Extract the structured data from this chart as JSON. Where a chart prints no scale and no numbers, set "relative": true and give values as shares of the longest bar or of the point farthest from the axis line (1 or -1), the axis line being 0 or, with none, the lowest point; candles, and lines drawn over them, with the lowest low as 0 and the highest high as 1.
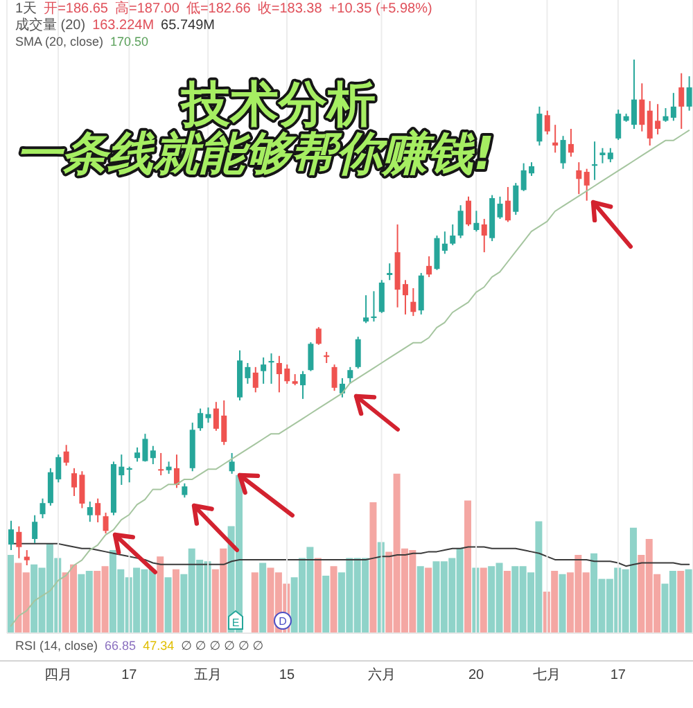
{
  "chart_data": [
    {
      "type": "candlestick",
      "title": "技术分析",
      "subtitle": "一条线就能够帮你赚钱!",
      "annotations": [
        "1天",
        "开=186.65",
        "高=187.00",
        "低=182.66",
        "收=183.38",
        "+10.35 (+5.98%)",
        "成交量 (20)",
        "163.224M",
        "65.749M",
        "SMA (20, close)",
        "170.50",
        "RSI (14, close)",
        "66.85",
        "47.34",
        "∅ ∅ ∅ ∅ ∅ ∅",
        "E",
        "D"
      ],
      "categories": [
        null,
        null,
        null,
        null,
        null,
        null,
        "四月",
        null,
        null,
        null,
        null,
        null,
        null,
        null,
        null,
        "17",
        null,
        null,
        null,
        null,
        null,
        null,
        null,
        null,
        null,
        "五月",
        null,
        null,
        null,
        null,
        null,
        null,
        null,
        null,
        null,
        "15",
        null,
        null,
        null,
        null,
        null,
        null,
        null,
        null,
        null,
        null,
        null,
        "六月",
        null,
        null,
        null,
        null,
        null,
        null,
        null,
        null,
        null,
        null,
        null,
        "20",
        null,
        null,
        null,
        null,
        null,
        null,
        null,
        null,
        "七月",
        null,
        null,
        null,
        null,
        null,
        null,
        null,
        null,
        "17",
        null,
        null,
        null,
        null,
        null,
        null,
        null,
        null,
        null
      ],
      "ohlc": [
        [
          0.041,
          0.088,
          0.03,
          0.071
        ],
        [
          0.066,
          0.077,
          0.014,
          0.036
        ],
        [
          0.017,
          0.03,
          0,
          0.01
        ],
        [
          0.052,
          0.099,
          0.044,
          0.086
        ],
        [
          0.101,
          0.132,
          0.093,
          0.123
        ],
        [
          0.123,
          0.192,
          0.118,
          0.184
        ],
        [
          0.17,
          0.219,
          0.164,
          0.214
        ],
        [
          0.225,
          0.238,
          0.197,
          0.203
        ],
        [
          0.182,
          0.192,
          0.137,
          0.154
        ],
        [
          0.179,
          0.186,
          0.113,
          0.122
        ],
        [
          0.099,
          0.126,
          0.086,
          0.115
        ],
        [
          0.123,
          0.132,
          0.085,
          0.099
        ],
        [
          0.097,
          0.104,
          0.063,
          0.068
        ],
        [
          0.104,
          0.205,
          0.099,
          0.2
        ],
        [
          0.178,
          0.219,
          0.159,
          0.195
        ],
        [
          0.189,
          0.195,
          0.164,
          0.192
        ],
        [
          0.212,
          0.233,
          0.205,
          0.223
        ],
        [
          0.206,
          0.26,
          0.205,
          0.25
        ],
        [
          0.212,
          0.236,
          0.2,
          0.227
        ],
        [
          0.19,
          0.222,
          0.178,
          0.188
        ],
        [
          0.188,
          0.205,
          0.181,
          0.195
        ],
        [
          0.192,
          0.219,
          0.153,
          0.159
        ],
        [
          0.139,
          0.162,
          0.134,
          0.156
        ],
        [
          0.192,
          0.282,
          0.186,
          0.268
        ],
        [
          0.271,
          0.31,
          0.266,
          0.301
        ],
        [
          0.291,
          0.312,
          0.282,
          0.299
        ],
        [
          0.31,
          0.323,
          0.266,
          0.27
        ],
        [
          0.296,
          0.326,
          0.238,
          0.244
        ],
        [
          0.186,
          0.222,
          0.181,
          0.205
        ],
        [
          0.332,
          0.425,
          0.326,
          0.405
        ],
        [
          0.37,
          0.4,
          0.359,
          0.392
        ],
        [
          0.381,
          0.392,
          0.342,
          0.351
        ],
        [
          0.384,
          0.411,
          0.359,
          0.397
        ],
        [
          0.401,
          0.419,
          0.359,
          0.404
        ],
        [
          0.4,
          0.414,
          0.342,
          0.378
        ],
        [
          0.389,
          0.397,
          0.359,
          0.364
        ],
        [
          0.364,
          0.378,
          0.356,
          0.359
        ],
        [
          0.356,
          0.384,
          0.329,
          0.378
        ],
        [
          0.386,
          0.441,
          0.384,
          0.438
        ],
        [
          0.468,
          0.471,
          0.436,
          0.438
        ],
        [
          0.415,
          0.422,
          0.4,
          0.412
        ],
        [
          0.392,
          0.397,
          0.345,
          0.351
        ],
        [
          0.34,
          0.37,
          0.332,
          0.359
        ],
        [
          0.37,
          0.392,
          0.359,
          0.386
        ],
        [
          0.392,
          0.452,
          0.389,
          0.447
        ],
        [
          0.482,
          0.534,
          0.479,
          0.49
        ],
        [
          0.489,
          0.542,
          0.482,
          0.492
        ],
        [
          0.501,
          0.564,
          0.499,
          0.559
        ],
        [
          0.574,
          0.597,
          0.564,
          0.578
        ],
        [
          0.619,
          0.674,
          0.51,
          0.545
        ],
        [
          0.556,
          0.564,
          0.496,
          0.534
        ],
        [
          0.521,
          0.548,
          0.493,
          0.501
        ],
        [
          0.504,
          0.578,
          0.496,
          0.573
        ],
        [
          0.592,
          0.611,
          0.57,
          0.575
        ],
        [
          0.586,
          0.652,
          0.584,
          0.647
        ],
        [
          0.622,
          0.66,
          0.616,
          0.636
        ],
        [
          0.636,
          0.674,
          0.633,
          0.652
        ],
        [
          0.652,
          0.712,
          0.647,
          0.701
        ],
        [
          0.721,
          0.729,
          0.671,
          0.674
        ],
        [
          0.663,
          0.701,
          0.66,
          0.677
        ],
        [
          0.674,
          0.685,
          0.619,
          0.652
        ],
        [
          0.647,
          0.732,
          0.641,
          0.726
        ],
        [
          0.688,
          0.729,
          0.685,
          0.715
        ],
        [
          0.721,
          0.748,
          0.679,
          0.682
        ],
        [
          0.699,
          0.756,
          0.693,
          0.751
        ],
        [
          0.742,
          0.795,
          0.74,
          0.781
        ],
        [
          0.775,
          0.797,
          0.77,
          0.789
        ],
        [
          0.838,
          0.907,
          0.83,
          0.893
        ],
        [
          0.89,
          0.899,
          0.852,
          0.858
        ],
        [
          0.836,
          0.871,
          0.816,
          0.83
        ],
        [
          0.795,
          0.849,
          0.784,
          0.841
        ],
        [
          0.833,
          0.863,
          0.808,
          0.816
        ],
        [
          0.781,
          0.797,
          0.734,
          0.764
        ],
        [
          0.778,
          0.784,
          0.721,
          0.751
        ],
        [
          0.79,
          0.838,
          0.762,
          0.793
        ],
        [
          0.811,
          0.825,
          0.795,
          0.816
        ],
        [
          0.803,
          0.825,
          0.797,
          0.816
        ],
        [
          0.844,
          0.901,
          0.841,
          0.893
        ],
        [
          0.879,
          0.893,
          0.877,
          0.888
        ],
        [
          0.871,
          1,
          0.863,
          0.921
        ],
        [
          0.921,
          0.953,
          0.858,
          0.871
        ],
        [
          0.899,
          0.918,
          0.83,
          0.844
        ],
        [
          0.879,
          0.912,
          0.852,
          0.863
        ],
        [
          0.879,
          0.904,
          0.877,
          0.888
        ],
        [
          0.885,
          0.934,
          0.879,
          0.907
        ],
        [
          0.945,
          0.973,
          0.863,
          0.907
        ],
        [
          0.907,
          0.967,
          0.899,
          0.945
        ]
      ],
      "colors": [
        "#26a69a",
        "#ef5350",
        "#ef5350",
        "#26a69a",
        "#26a69a",
        "#26a69a",
        "#26a69a",
        "#ef5350",
        "#ef5350",
        "#ef5350",
        "#26a69a",
        "#ef5350",
        "#ef5350",
        "#26a69a",
        "#26a69a",
        "#26a69a",
        "#26a69a",
        "#26a69a",
        "#26a69a",
        "#ef5350",
        "#26a69a",
        "#ef5350",
        "#26a69a",
        "#26a69a",
        "#26a69a",
        "#26a69a",
        "#ef5350",
        "#ef5350",
        "#26a69a",
        "#26a69a",
        "#26a69a",
        "#ef5350",
        "#26a69a",
        "#26a69a",
        "#ef5350",
        "#ef5350",
        "#ef5350",
        "#26a69a",
        "#26a69a",
        "#ef5350",
        "#ef5350",
        "#ef5350",
        "#26a69a",
        "#26a69a",
        "#26a69a",
        "#26a69a",
        "#26a69a",
        "#26a69a",
        "#26a69a",
        "#ef5350",
        "#ef5350",
        "#ef5350",
        "#26a69a",
        "#ef5350",
        "#26a69a",
        "#26a69a",
        "#26a69a",
        "#26a69a",
        "#ef5350",
        "#26a69a",
        "#ef5350",
        "#26a69a",
        "#26a69a",
        "#ef5350",
        "#26a69a",
        "#26a69a",
        "#26a69a",
        "#26a69a",
        "#ef5350",
        "#ef5350",
        "#26a69a",
        "#ef5350",
        "#ef5350",
        "#ef5350",
        "#26a69a",
        "#26a69a",
        "#26a69a",
        "#26a69a",
        "#26a69a",
        "#26a69a",
        "#ef5350",
        "#ef5350",
        "#ef5350",
        "#26a69a",
        "#26a69a",
        "#ef5350",
        "#26a69a"
      ],
      "series": [
        {
          "type": "line",
          "color": "#a5c59f",
          "values": [
            -0.12,
            -0.1,
            -0.09,
            -0.07,
            -0.06,
            -0.05,
            -0.03,
            -0.02,
            0,
            0.01,
            0.03,
            0.04,
            0.06,
            0.07,
            0.09,
            0.1,
            0.12,
            0.13,
            0.15,
            0.15,
            0.16,
            0.16,
            0.17,
            0.17,
            0.18,
            0.19,
            0.19,
            0.2,
            0.21,
            0.22,
            0.23,
            0.24,
            0.25,
            0.26,
            0.26,
            0.27,
            0.28,
            0.29,
            0.3,
            0.31,
            0.32,
            0.33,
            0.34,
            0.36,
            0.37,
            0.38,
            0.39,
            0.4,
            0.41,
            0.42,
            0.43,
            0.44,
            0.44,
            0.45,
            0.47,
            0.48,
            0.5,
            0.51,
            0.52,
            0.54,
            0.55,
            0.57,
            0.58,
            0.6,
            0.62,
            0.64,
            0.66,
            0.67,
            0.68,
            0.7,
            0.71,
            0.72,
            0.73,
            0.74,
            0.75,
            0.76,
            0.77,
            0.78,
            0.79,
            0.8,
            0.81,
            0.82,
            0.83,
            0.84,
            0.84,
            0.85,
            0.86
          ]
        }
      ],
      "relative": true,
      "grid": "x"
    },
    {
      "type": "bar",
      "categories": [
        null,
        null,
        null,
        null,
        null,
        null,
        null,
        null,
        null,
        null,
        null,
        null,
        null,
        null,
        null,
        null,
        null,
        null,
        null,
        null,
        null,
        null,
        null,
        null,
        null,
        null,
        null,
        null,
        null,
        null,
        null,
        null,
        null,
        null,
        null,
        null,
        null,
        null,
        null,
        null,
        null,
        null,
        null,
        null,
        null,
        null,
        null,
        null,
        null,
        null,
        null,
        null,
        null,
        null,
        null,
        null,
        null,
        null,
        null,
        null,
        null,
        null,
        null,
        null,
        null,
        null,
        null,
        null,
        null,
        null,
        null,
        null,
        null,
        null,
        null,
        null,
        null,
        null,
        null,
        null,
        null,
        null,
        null,
        null,
        null,
        null,
        null
      ],
      "series": [
        {
          "type": "bar",
          "colors": [
            "#8fd3c9",
            "#f4a7a3",
            "#f4a7a3",
            "#8fd3c9",
            "#8fd3c9",
            "#8fd3c9",
            "#8fd3c9",
            "#f4a7a3",
            "#f4a7a3",
            "#8fd3c9",
            "#8fd3c9",
            "#f4a7a3",
            "#f4a7a3",
            "#8fd3c9",
            "#8fd3c9",
            "#8fd3c9",
            "#8fd3c9",
            "#8fd3c9",
            "#8fd3c9",
            "#f4a7a3",
            "#8fd3c9",
            "#f4a7a3",
            "#8fd3c9",
            "#8fd3c9",
            "#8fd3c9",
            "#8fd3c9",
            "#f4a7a3",
            "#f4a7a3",
            "#8fd3c9",
            "#8fd3c9",
            "#8fd3c9",
            "#f4a7a3",
            "#8fd3c9",
            "#f4a7a3",
            "#f4a7a3",
            "#f4a7a3",
            "#8fd3c9",
            "#8fd3c9",
            "#8fd3c9",
            "#f4a7a3",
            "#8fd3c9",
            "#f4a7a3",
            "#8fd3c9",
            "#8fd3c9",
            "#8fd3c9",
            "#8fd3c9",
            "#f4a7a3",
            "#8fd3c9",
            "#f4a7a3",
            "#f4a7a3",
            "#f4a7a3",
            "#f4a7a3",
            "#8fd3c9",
            "#f4a7a3",
            "#8fd3c9",
            "#8fd3c9",
            "#8fd3c9",
            "#8fd3c9",
            "#f4a7a3",
            "#8fd3c9",
            "#f4a7a3",
            "#8fd3c9",
            "#8fd3c9",
            "#f4a7a3",
            "#8fd3c9",
            "#8fd3c9",
            "#8fd3c9",
            "#8fd3c9",
            "#f4a7a3",
            "#f4a7a3",
            "#8fd3c9",
            "#f4a7a3",
            "#f4a7a3",
            "#f4a7a3",
            "#8fd3c9",
            "#8fd3c9",
            "#8fd3c9",
            "#8fd3c9",
            "#8fd3c9",
            "#8fd3c9",
            "#f4a7a3",
            "#f4a7a3",
            "#f4a7a3",
            "#8fd3c9",
            "#8fd3c9",
            "#f4a7a3",
            "#8fd3c9"
          ],
          "values": [
            0.49,
            0.44,
            0.38,
            0.43,
            0.41,
            0.56,
            0.47,
            0.38,
            0.43,
            0.37,
            0.39,
            0.39,
            0.42,
            0.52,
            0.4,
            0.35,
            0.41,
            0.4,
            0.4,
            0.48,
            0.35,
            0.4,
            0.37,
            0.53,
            0.46,
            0.45,
            0.4,
            0.53,
            0.67,
            0.99,
            null,
            0.38,
            0.44,
            0.41,
            0.38,
            0.31,
            0.35,
            0.47,
            0.54,
            0.47,
            0.36,
            0.42,
            0.38,
            0.47,
            0.47,
            0.47,
            0.82,
            0.57,
            0.51,
            1,
            0.53,
            0.52,
            0.42,
            0.41,
            0.45,
            0.45,
            0.47,
            0.53,
            0.83,
            0.41,
            0.41,
            0.42,
            0.44,
            0.39,
            0.42,
            0.42,
            0.38,
            0.7,
            0.26,
            0.39,
            0.37,
            0.38,
            0.49,
            0.38,
            0.5,
            0.34,
            0.34,
            0.41,
            0.4,
            0.66,
            0.49,
            0.59,
            0.37,
            0.31,
            0.39,
            0.39,
            0.4
          ]
        },
        {
          "type": "line",
          "color": "#3a3a3a",
          "values": [
            0.56,
            0.56,
            0.56,
            0.56,
            0.56,
            0.56,
            0.56,
            0.55,
            0.54,
            0.53,
            0.53,
            0.52,
            0.51,
            0.5,
            0.49,
            0.48,
            0.47,
            0.46,
            0.44,
            0.43,
            0.43,
            0.43,
            0.43,
            0.43,
            0.43,
            0.43,
            0.43,
            0.43,
            0.45,
            0.46,
            0.46,
            0.46,
            0.46,
            0.46,
            0.46,
            0.46,
            0.46,
            0.46,
            0.46,
            0.46,
            0.46,
            0.46,
            0.46,
            0.46,
            0.46,
            0.46,
            0.47,
            0.48,
            0.48,
            0.49,
            0.49,
            0.5,
            0.5,
            0.51,
            0.51,
            0.52,
            0.53,
            0.53,
            0.54,
            0.54,
            0.54,
            0.53,
            0.53,
            0.53,
            0.53,
            0.52,
            0.51,
            0.5,
            0.48,
            0.46,
            0.46,
            0.46,
            0.46,
            0.46,
            0.45,
            0.45,
            0.45,
            0.44,
            0.42,
            0.43,
            0.44,
            0.44,
            0.44,
            0.44,
            0.44,
            0.43,
            0.43
          ]
        }
      ],
      "relative": true
    }
  ]
}
